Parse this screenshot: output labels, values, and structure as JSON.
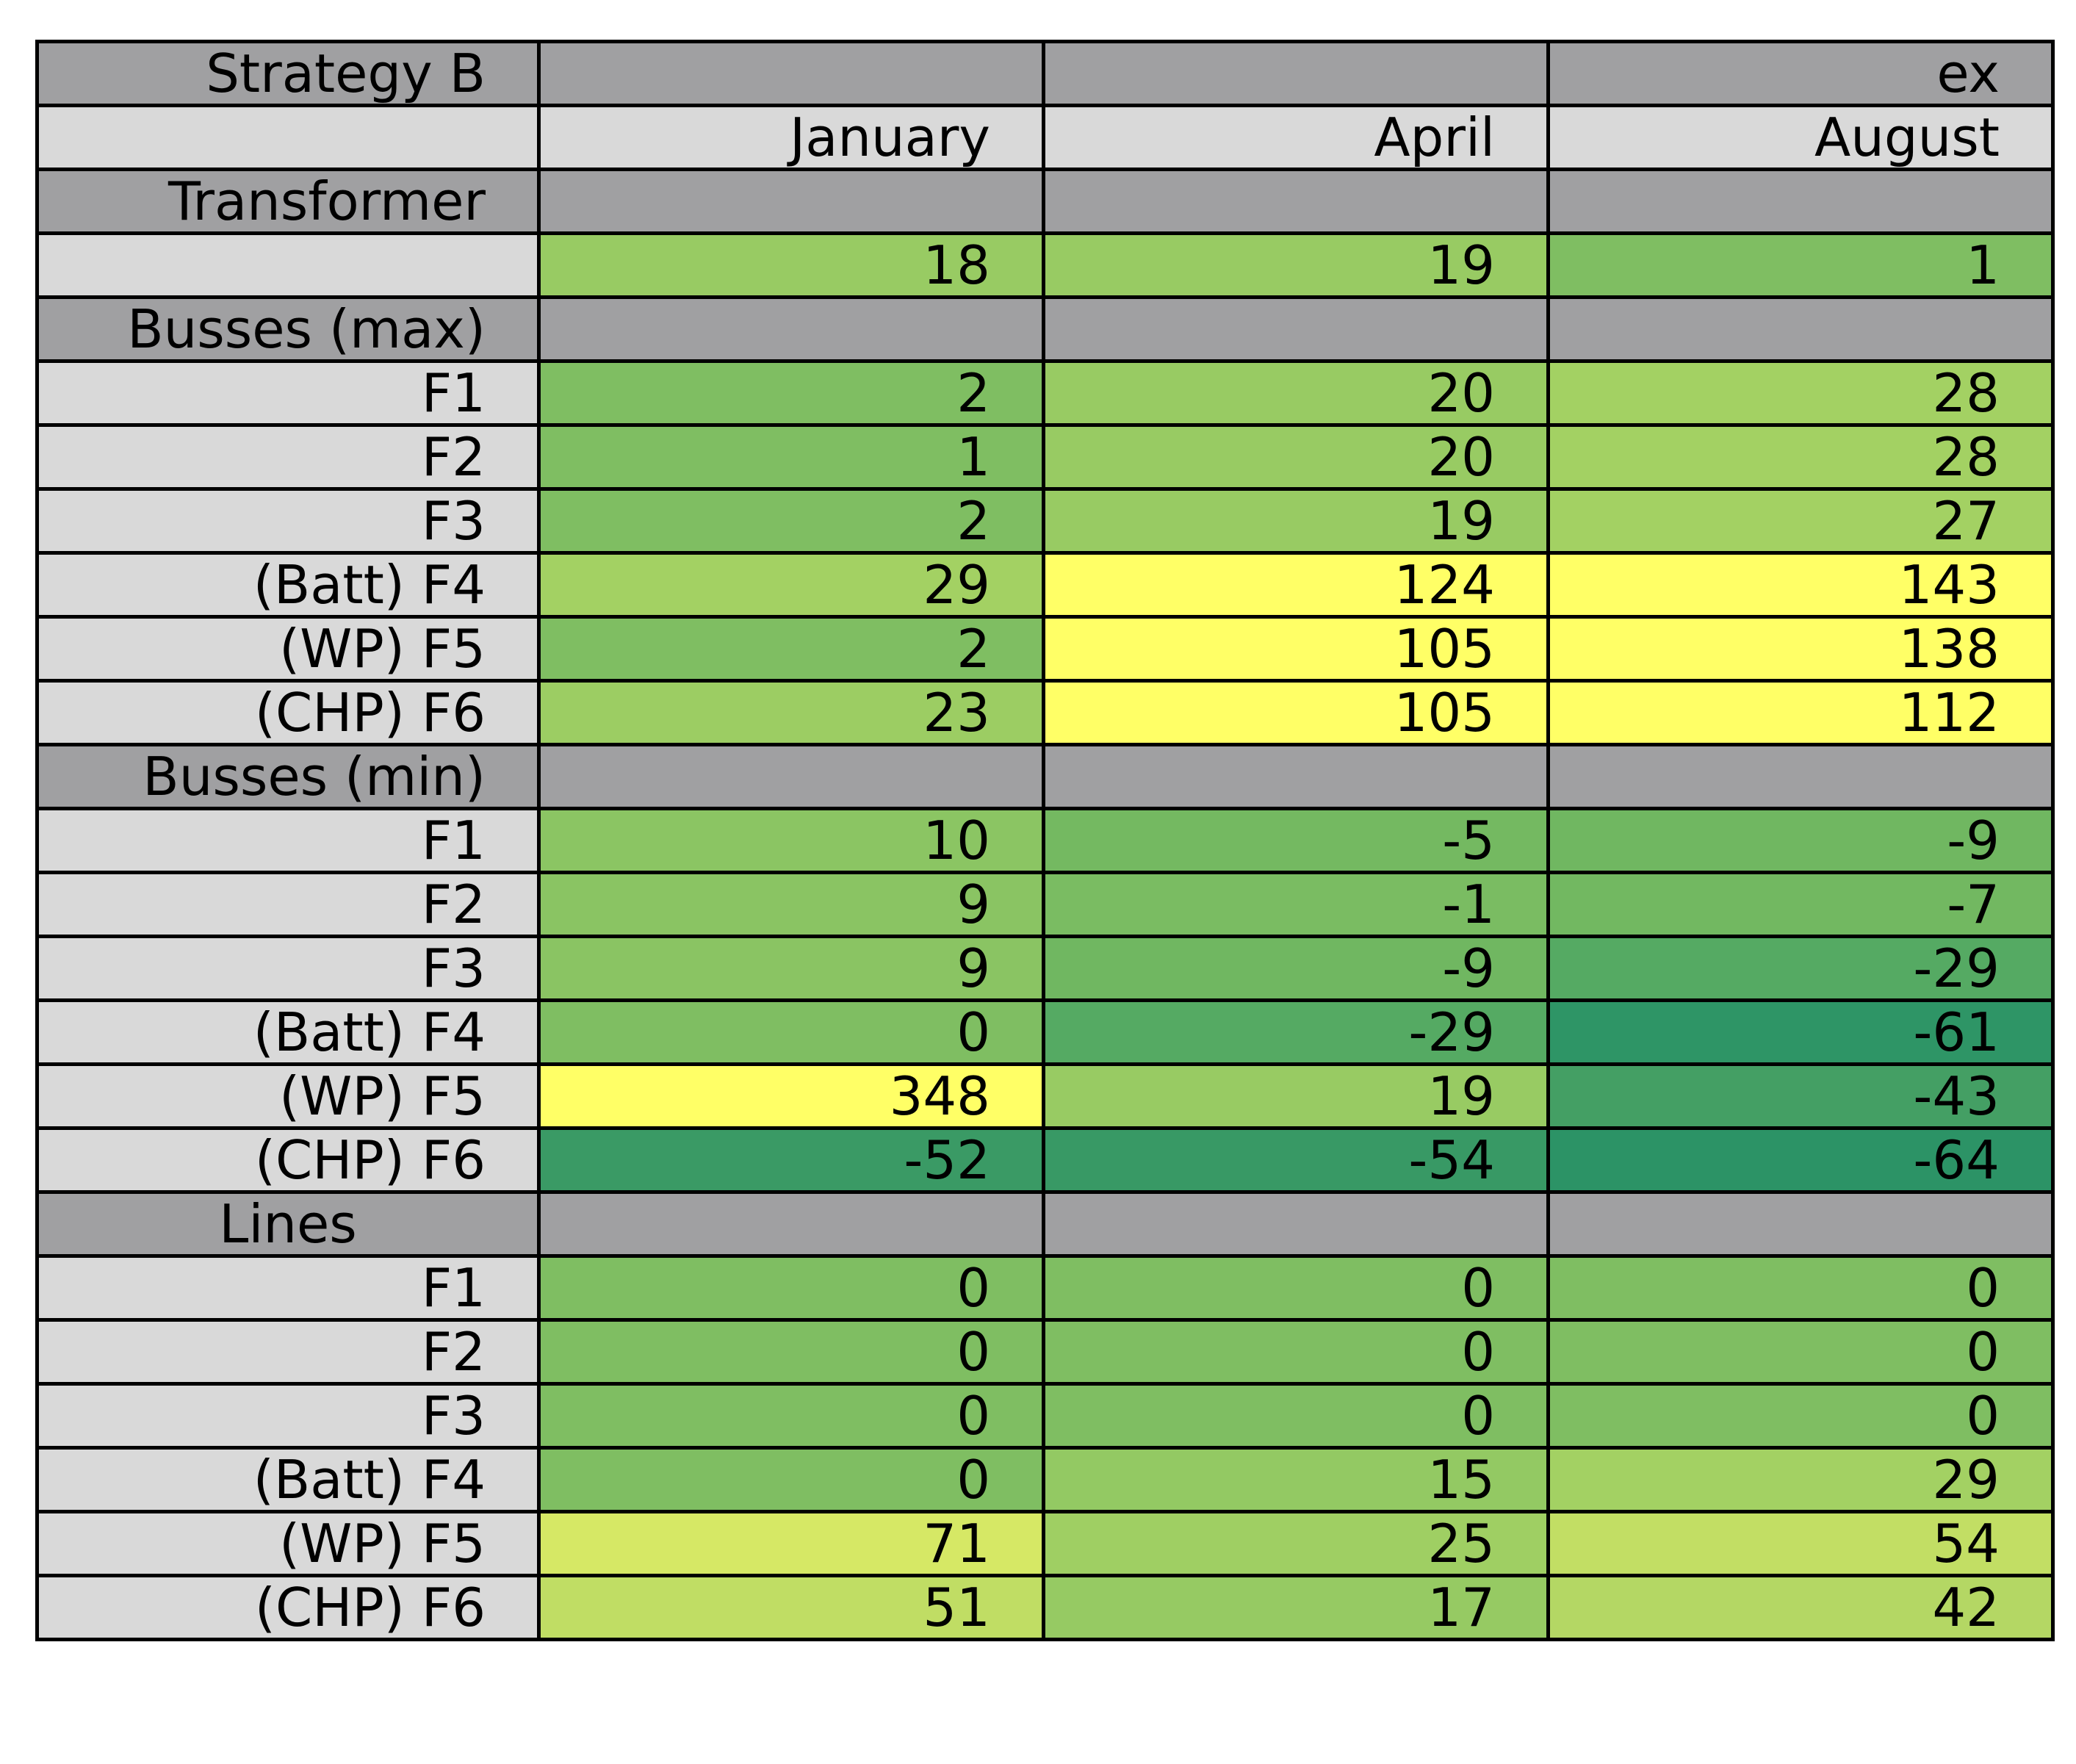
{
  "chart_data": {
    "type": "table",
    "title_cells": [
      "Strategy B",
      "",
      "",
      "ex"
    ],
    "columns": [
      "January",
      "April",
      "August"
    ],
    "rows": [
      {
        "kind": "section",
        "label": "Transformer"
      },
      {
        "kind": "data",
        "label": "",
        "values": [
          18,
          19,
          1
        ],
        "colors": [
          "#98CB63",
          "#98CB63",
          "#7FBE62"
        ]
      },
      {
        "kind": "section",
        "label": "Busses (max)"
      },
      {
        "kind": "data",
        "label": "F1",
        "values": [
          2,
          20,
          28
        ],
        "colors": [
          "#7FBE62",
          "#98CB63",
          "#A3D163"
        ]
      },
      {
        "kind": "data",
        "label": "F2",
        "values": [
          1,
          20,
          28
        ],
        "colors": [
          "#7FBE62",
          "#98CB63",
          "#A3D163"
        ]
      },
      {
        "kind": "data",
        "label": "F3",
        "values": [
          2,
          19,
          27
        ],
        "colors": [
          "#7FBE62",
          "#98CB63",
          "#A3D163"
        ]
      },
      {
        "kind": "data",
        "label": "(Batt) F4",
        "values": [
          29,
          124,
          143
        ],
        "colors": [
          "#A3D163",
          "#FFFF66",
          "#FFFF66"
        ]
      },
      {
        "kind": "data",
        "label": "(WP) F5",
        "values": [
          2,
          105,
          138
        ],
        "colors": [
          "#7FBE62",
          "#FFFF66",
          "#FFFF66"
        ]
      },
      {
        "kind": "data",
        "label": "(CHP) F6",
        "values": [
          23,
          105,
          112
        ],
        "colors": [
          "#9CCD63",
          "#FFFF66",
          "#FFFF66"
        ]
      },
      {
        "kind": "section",
        "label": "Busses (min)"
      },
      {
        "kind": "data",
        "label": "F1",
        "values": [
          10,
          -5,
          -9
        ],
        "colors": [
          "#8BC563",
          "#74B961",
          "#70B761"
        ]
      },
      {
        "kind": "data",
        "label": "F2",
        "values": [
          9,
          -1,
          -7
        ],
        "colors": [
          "#8AC463",
          "#7ABC62",
          "#72B861"
        ]
      },
      {
        "kind": "data",
        "label": "F3",
        "values": [
          9,
          -9,
          -29
        ],
        "colors": [
          "#8AC463",
          "#70B761",
          "#55AA63"
        ]
      },
      {
        "kind": "data",
        "label": "(Batt) F4",
        "values": [
          0,
          -29,
          -61
        ],
        "colors": [
          "#7FBE62",
          "#55AA63",
          "#2E9566"
        ]
      },
      {
        "kind": "data",
        "label": "(WP) F5",
        "values": [
          348,
          19,
          -43
        ],
        "colors": [
          "#FFFF66",
          "#98CB63",
          "#449F64"
        ]
      },
      {
        "kind": "data",
        "label": "(CHP) F6",
        "values": [
          -52,
          -54,
          -64
        ],
        "colors": [
          "#3A9A65",
          "#389965",
          "#2C9366"
        ]
      },
      {
        "kind": "section",
        "label": "Lines",
        "center": true
      },
      {
        "kind": "data",
        "label": "F1",
        "values": [
          0,
          0,
          0
        ],
        "colors": [
          "#7FBE62",
          "#7FBE62",
          "#7FBE62"
        ]
      },
      {
        "kind": "data",
        "label": "F2",
        "values": [
          0,
          0,
          0
        ],
        "colors": [
          "#7FBE62",
          "#7FBE62",
          "#7FBE62"
        ]
      },
      {
        "kind": "data",
        "label": "F3",
        "values": [
          0,
          0,
          0
        ],
        "colors": [
          "#7FBE62",
          "#7FBE62",
          "#7FBE62"
        ]
      },
      {
        "kind": "data",
        "label": "(Batt) F4",
        "values": [
          0,
          15,
          29
        ],
        "colors": [
          "#7FBE62",
          "#93C963",
          "#A3D163"
        ]
      },
      {
        "kind": "data",
        "label": "(WP) F5",
        "values": [
          71,
          25,
          54
        ],
        "colors": [
          "#D6E865",
          "#9FCF63",
          "#C2DE64"
        ]
      },
      {
        "kind": "data",
        "label": "(CHP) F6",
        "values": [
          51,
          17,
          42
        ],
        "colors": [
          "#C0DD64",
          "#96CA63",
          "#B4D764"
        ]
      }
    ],
    "header_colors": {
      "section": "#A0A0A2",
      "label": "#D9D9D9"
    }
  }
}
